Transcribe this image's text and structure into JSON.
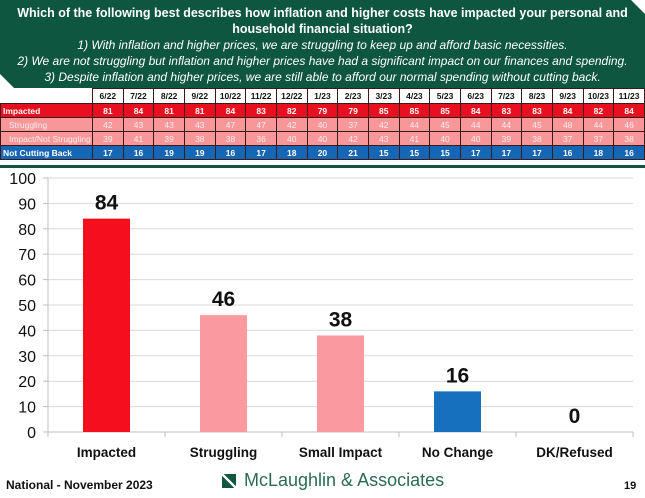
{
  "header": {
    "question": "Which of the following best describes how inflation and higher costs have impacted your personal and household financial situation?",
    "options": [
      "1) With inflation and higher prices, we are struggling to keep up and afford basic necessities.",
      "2) We are not struggling but inflation and higher prices have had a significant impact on our finances and spending.",
      "3) Despite inflation and higher prices, we are still able to afford our normal spending without cutting back."
    ]
  },
  "trend_table": {
    "months": [
      "6/22",
      "7/22",
      "8/22",
      "9/22",
      "10/22",
      "11/22",
      "12/22",
      "1/23",
      "2/23",
      "3/23",
      "4/23",
      "5/23",
      "6/23",
      "7/23",
      "8/23",
      "9/23",
      "10/23",
      "11/23"
    ],
    "rows": [
      {
        "label": "Impacted",
        "values": [
          81,
          84,
          81,
          81,
          84,
          83,
          82,
          79,
          79,
          85,
          85,
          85,
          84,
          83,
          83,
          84,
          82,
          84
        ]
      },
      {
        "label": "Struggling",
        "values": [
          42,
          43,
          43,
          43,
          47,
          47,
          42,
          40,
          37,
          42,
          44,
          45,
          44,
          44,
          45,
          48,
          44,
          46
        ]
      },
      {
        "label": "Impact/Not Struggling",
        "values": [
          39,
          41,
          39,
          38,
          38,
          36,
          40,
          40,
          42,
          43,
          41,
          40,
          40,
          39,
          38,
          37,
          37,
          38
        ]
      },
      {
        "label": "Not Cutting Back",
        "values": [
          17,
          16,
          19,
          19,
          16,
          17,
          18,
          20,
          21,
          15,
          15,
          15,
          17,
          17,
          17,
          16,
          18,
          16
        ]
      }
    ]
  },
  "chart_data": {
    "type": "bar",
    "title": "",
    "xlabel": "",
    "ylabel": "",
    "categories": [
      "Impacted",
      "Struggling",
      "Small Impact",
      "No Change",
      "DK/Refused"
    ],
    "values": [
      84,
      46,
      38,
      16,
      0
    ],
    "colors": [
      "#f50f1d",
      "#fb9a9e",
      "#fb9a9e",
      "#1770be",
      "#1770be"
    ],
    "ylim": [
      0,
      100
    ],
    "yticks": [
      0,
      10,
      20,
      30,
      40,
      50,
      60,
      70,
      80,
      90,
      100
    ],
    "grid": true,
    "legend": "none",
    "data_labels": [
      "84",
      "46",
      "38",
      "16",
      "0"
    ]
  },
  "footer": {
    "source": "National - November 2023",
    "brand": "McLaughlin & Associates",
    "page_number": "19"
  }
}
